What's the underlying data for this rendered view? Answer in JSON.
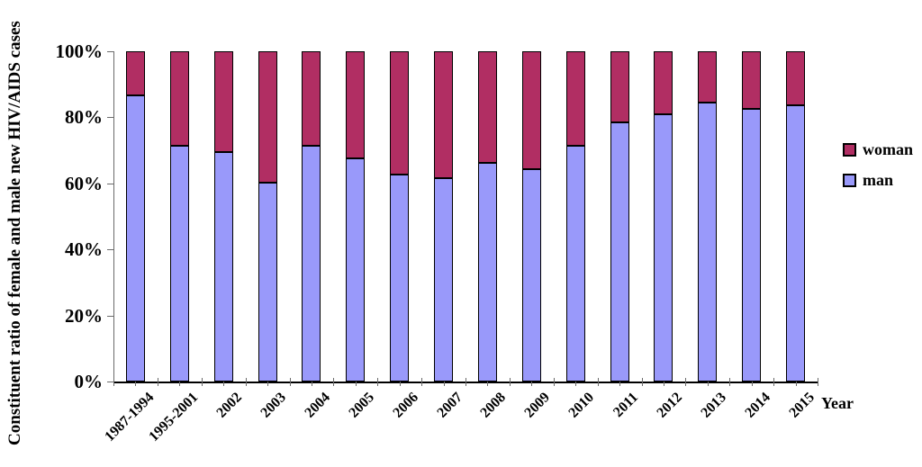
{
  "chart_data": {
    "type": "bar",
    "subtype": "percent-stacked-column",
    "title": "",
    "xlabel": "Year",
    "ylabel": "Constituent ratio of female and male new HIV/AIDS cases",
    "categories": [
      "1987-1994",
      "1995-2001",
      "2002",
      "2003",
      "2004",
      "2005",
      "2006",
      "2007",
      "2008",
      "2009",
      "2010",
      "2011",
      "2012",
      "2013",
      "2014",
      "2015"
    ],
    "series": [
      {
        "name": "man",
        "color": "#9999FA",
        "border_color": "#000000",
        "values": [
          86.6,
          71.3,
          69.6,
          60.1,
          71.5,
          67.5,
          62.8,
          61.6,
          66.2,
          64.2,
          71.5,
          78.5,
          81.0,
          84.4,
          82.5,
          83.8
        ]
      },
      {
        "name": "woman",
        "color": "#B12E63",
        "border_color": "#000000",
        "values": [
          13.4,
          28.7,
          30.4,
          39.9,
          28.5,
          32.5,
          37.2,
          38.4,
          33.8,
          35.8,
          28.5,
          21.5,
          19.0,
          15.6,
          17.5,
          16.2
        ]
      }
    ],
    "y_ticks": [
      "0%",
      "20%",
      "40%",
      "60%",
      "80%",
      "100%"
    ],
    "ylim": [
      0,
      100
    ],
    "grid": false,
    "background": "#FFFFFF",
    "axis_color": "#6b6b6b",
    "legend": {
      "position": "right",
      "items": [
        {
          "label": "woman",
          "color": "#B12E63"
        },
        {
          "label": "man",
          "color": "#9999FA"
        }
      ]
    }
  }
}
